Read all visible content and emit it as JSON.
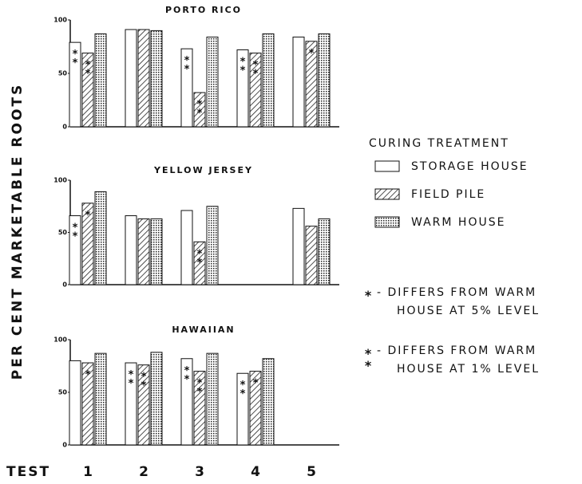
{
  "chart_data": [
    {
      "type": "bar",
      "title": "PORTO RICO",
      "ylim": [
        0,
        100
      ],
      "yticks": [
        0,
        50,
        100
      ],
      "legend_title": "CURING TREATMENT",
      "series": [
        {
          "name": "STORAGE HOUSE",
          "pattern": "plain",
          "values": [
            79,
            91,
            73,
            72,
            84
          ],
          "stars": [
            "**",
            null,
            "**",
            "**",
            null
          ]
        },
        {
          "name": "FIELD PILE",
          "pattern": "hatch",
          "values": [
            69,
            91,
            32,
            69,
            80
          ],
          "stars": [
            "**",
            null,
            "**",
            "**",
            "*"
          ]
        },
        {
          "name": "WARM HOUSE",
          "pattern": "dots",
          "values": [
            87,
            90,
            84,
            87,
            87
          ],
          "stars": [
            null,
            null,
            null,
            null,
            null
          ]
        }
      ]
    },
    {
      "type": "bar",
      "title": "YELLOW JERSEY",
      "ylim": [
        0,
        100
      ],
      "yticks": [
        0,
        50,
        100
      ],
      "series": [
        {
          "pattern": "plain",
          "values": [
            66,
            66,
            71,
            null,
            73
          ],
          "stars": [
            "**",
            null,
            null,
            null,
            null
          ]
        },
        {
          "pattern": "hatch",
          "values": [
            78,
            63,
            41,
            null,
            56
          ],
          "stars": [
            "*",
            null,
            "**",
            null,
            null
          ]
        },
        {
          "pattern": "dots",
          "values": [
            89,
            63,
            75,
            null,
            63
          ],
          "stars": [
            null,
            null,
            null,
            null,
            null
          ]
        }
      ]
    },
    {
      "type": "bar",
      "title": "HAWAIIAN",
      "ylim": [
        0,
        100
      ],
      "yticks": [
        0,
        50,
        100
      ],
      "x_label": "TEST",
      "categories": [
        "1",
        "2",
        "3",
        "4",
        "5"
      ],
      "series": [
        {
          "pattern": "plain",
          "values": [
            80,
            78,
            82,
            68,
            null
          ],
          "stars": [
            null,
            "**",
            "**",
            "**",
            null
          ]
        },
        {
          "pattern": "hatch",
          "values": [
            78,
            76,
            70,
            70,
            null
          ],
          "stars": [
            "*",
            "**",
            "**",
            "*",
            null
          ]
        },
        {
          "pattern": "dots",
          "values": [
            87,
            88,
            87,
            82,
            null
          ],
          "stars": [
            null,
            null,
            null,
            null,
            null
          ]
        }
      ]
    }
  ],
  "y_label": "PER CENT MARKETABLE ROOTS",
  "notes": [
    {
      "marker": "*",
      "lines": [
        "- DIFFERS FROM WARM",
        "HOUSE AT 5% LEVEL"
      ]
    },
    {
      "marker": "**",
      "lines": [
        "- DIFFERS FROM WARM",
        "HOUSE AT 1% LEVEL"
      ]
    }
  ]
}
